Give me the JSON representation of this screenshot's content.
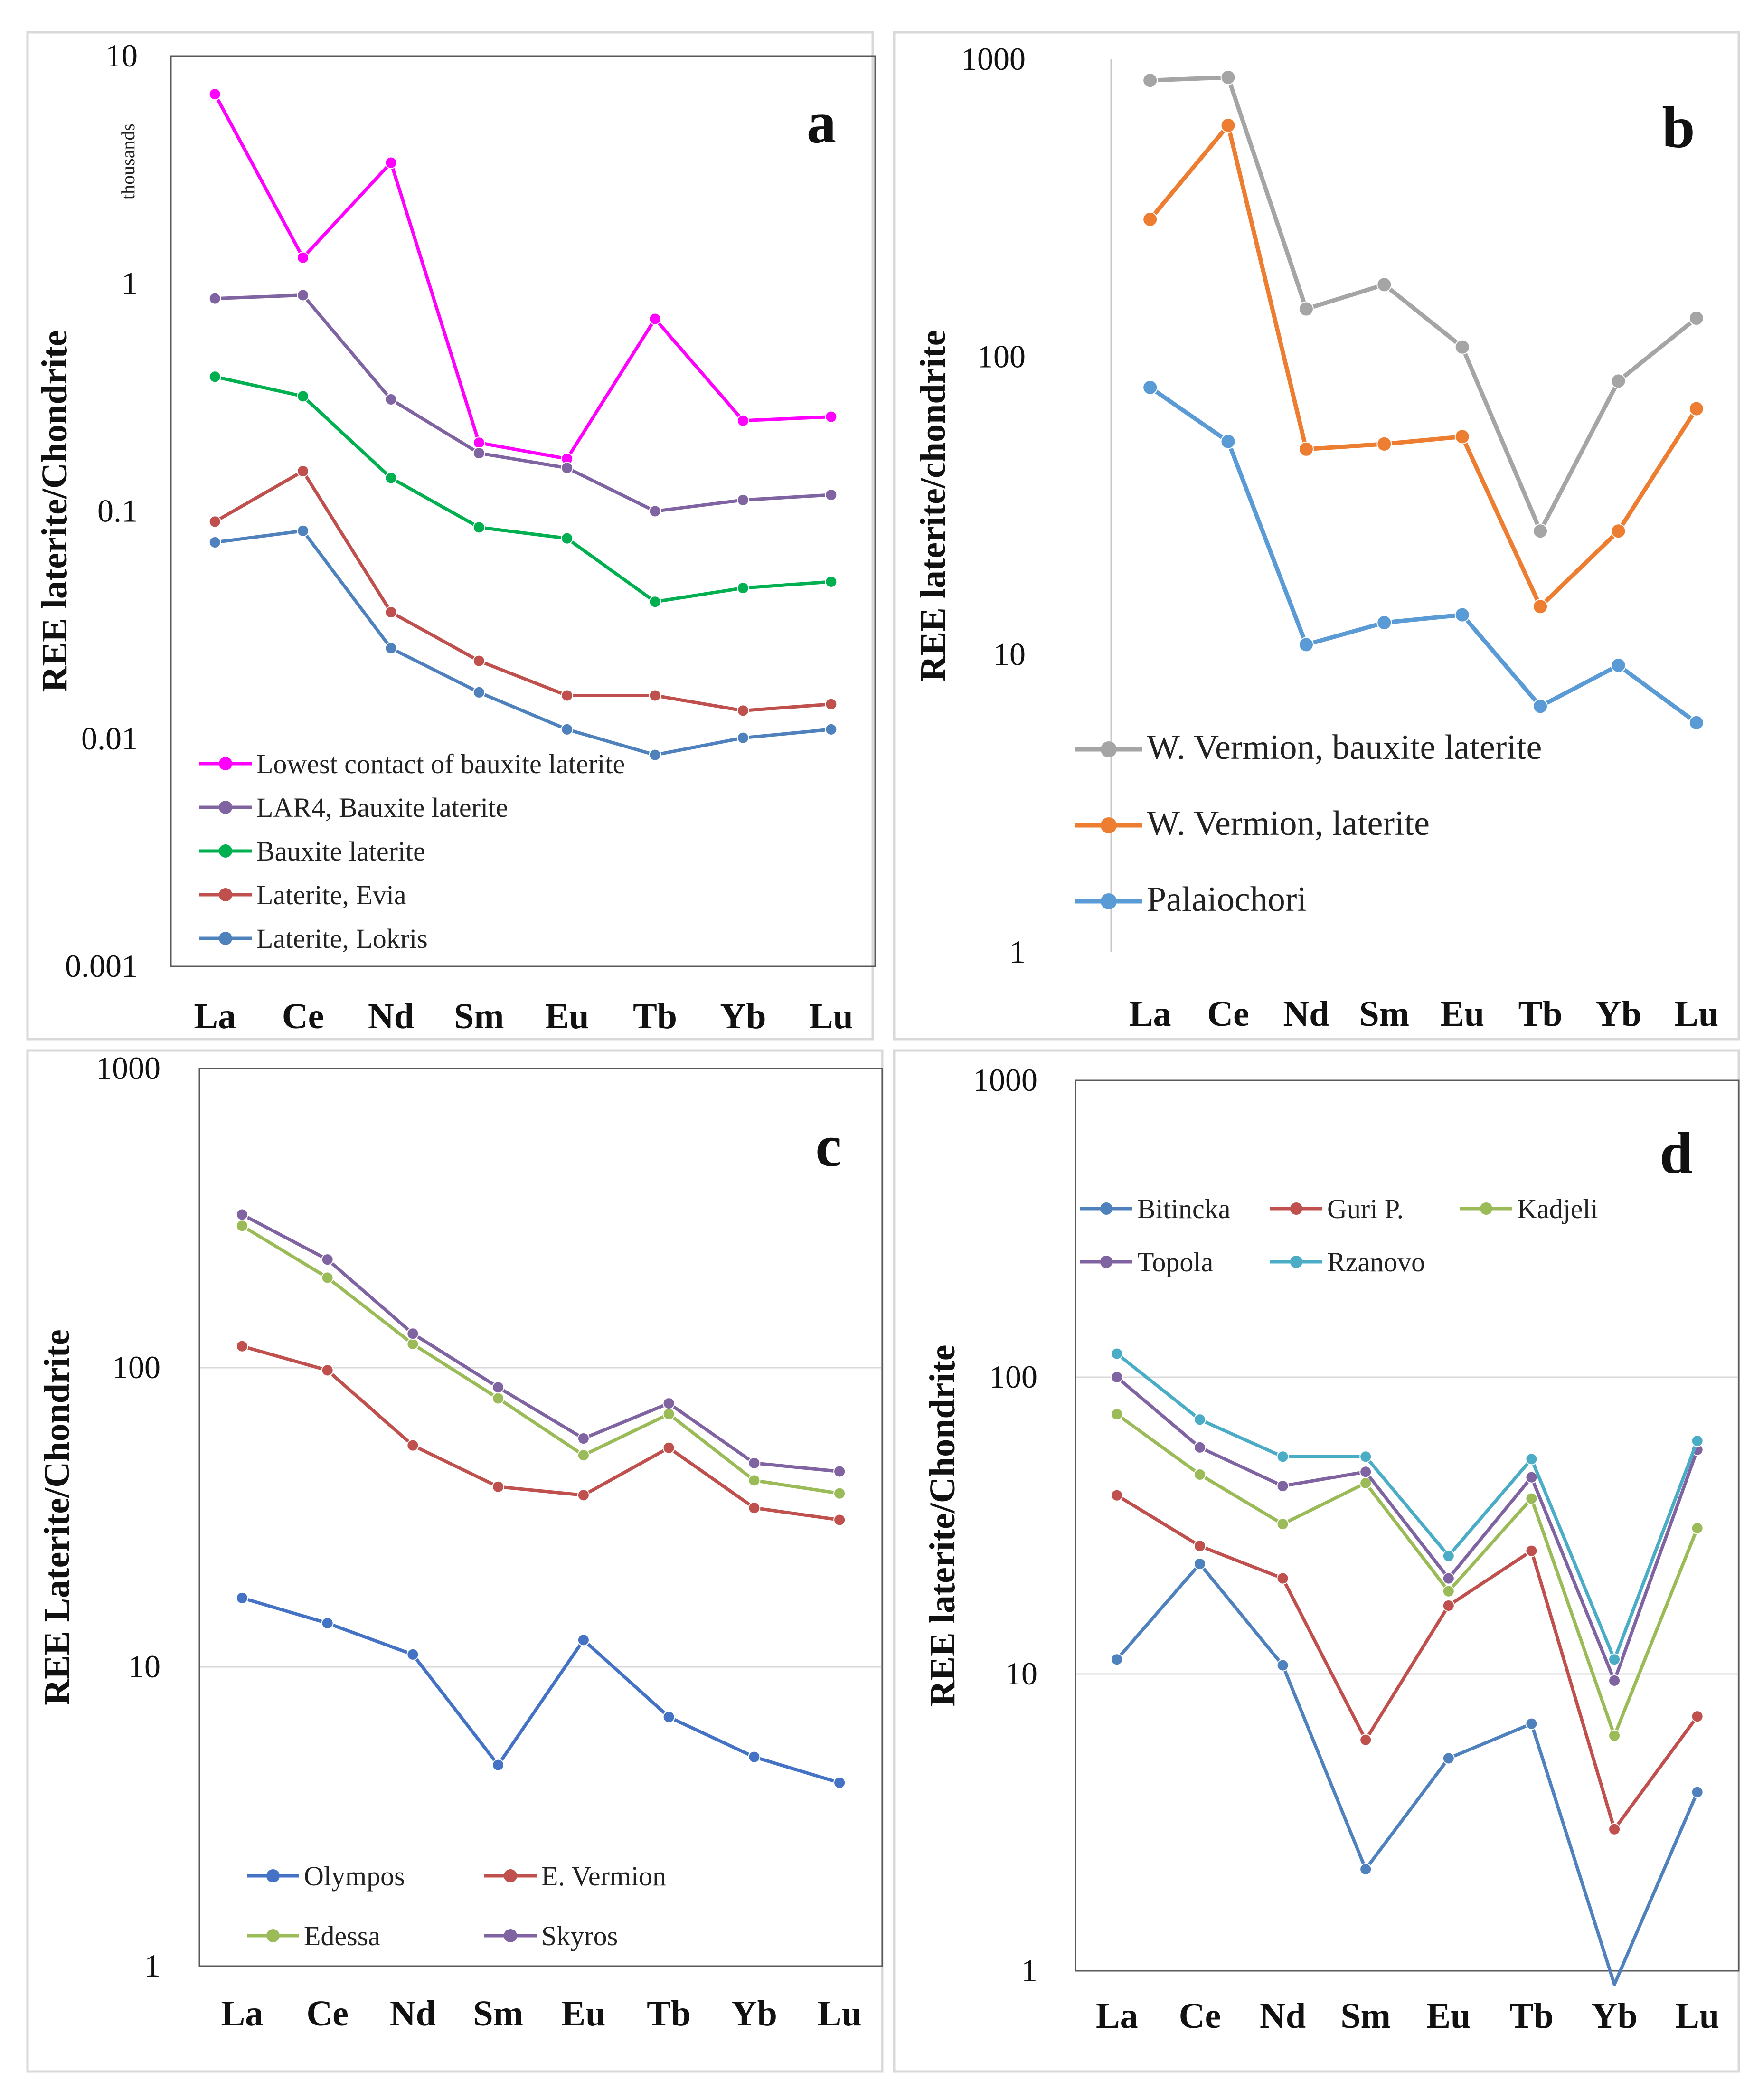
{
  "figure": {
    "panels": [
      {
        "id": "a",
        "letter": "a",
        "axis_unit_label": "thousands"
      },
      {
        "id": "b",
        "letter": "b"
      },
      {
        "id": "c",
        "letter": "c"
      },
      {
        "id": "d",
        "letter": "d"
      }
    ]
  },
  "chart_data": [
    {
      "panel": "a",
      "type": "line",
      "yscale": "log",
      "ylabel": "REE laterite/Chondrite",
      "ylim": [
        0.001,
        10
      ],
      "ytick_labels": [
        "10",
        "1",
        "0.1",
        "0.01",
        "0.001"
      ],
      "ytick_values": [
        10,
        1,
        0.1,
        0.01,
        0.001
      ],
      "categories": [
        "La",
        "Ce",
        "Nd",
        "Sm",
        "Eu",
        "Tb",
        "Yb",
        "Lu"
      ],
      "grid": false,
      "legend_position": "bottom-left",
      "series": [
        {
          "name": "Lowest contact of bauxite laterite",
          "color": "#ff00ff",
          "values": [
            6.8,
            1.3,
            3.4,
            0.2,
            0.17,
            0.7,
            0.25,
            0.26
          ]
        },
        {
          "name": "LAR4, Bauxite laterite",
          "color": "#8064a2",
          "values": [
            0.86,
            0.89,
            0.31,
            0.18,
            0.155,
            0.1,
            0.112,
            0.118
          ]
        },
        {
          "name": "Bauxite laterite",
          "color": "#00b050",
          "values": [
            0.39,
            0.32,
            0.14,
            0.085,
            0.076,
            0.04,
            0.046,
            0.049
          ]
        },
        {
          "name": "Laterite, Evia",
          "color": "#c0504d",
          "values": [
            0.09,
            0.15,
            0.036,
            0.022,
            0.0155,
            0.0155,
            0.0133,
            0.0142
          ]
        },
        {
          "name": "Laterite, Lokris",
          "color": "#4f81bd",
          "values": [
            0.073,
            0.082,
            0.025,
            0.016,
            0.011,
            0.0085,
            0.0101,
            0.011
          ]
        }
      ]
    },
    {
      "panel": "b",
      "type": "line",
      "yscale": "log",
      "ylabel": "REE laterite/chondrite",
      "ylim": [
        1,
        1000
      ],
      "ytick_labels": [
        "1000",
        "100",
        "10",
        "1"
      ],
      "ytick_values": [
        1000,
        100,
        10,
        1
      ],
      "categories": [
        "La",
        "Ce",
        "Nd",
        "Sm",
        "Eu",
        "Tb",
        "Yb",
        "Lu"
      ],
      "grid": false,
      "legend_position": "bottom-left",
      "series": [
        {
          "name": "W. Vermion, bauxite laterite",
          "color": "#a5a5a5",
          "values": [
            850,
            870,
            145,
            175,
            108,
            26,
            83,
            135
          ]
        },
        {
          "name": "W. Vermion, laterite",
          "color": "#ed7d31",
          "values": [
            290,
            600,
            49,
            51,
            54,
            14.5,
            26,
            67
          ]
        },
        {
          "name": "Palaiochori",
          "color": "#5b9bd5",
          "values": [
            79,
            52,
            10.8,
            12.8,
            13.6,
            6.7,
            9.2,
            5.9
          ]
        }
      ]
    },
    {
      "panel": "c",
      "type": "line",
      "yscale": "log",
      "ylabel": "REE Laterite/Chondrite",
      "ylim": [
        1,
        1000
      ],
      "ytick_labels": [
        "1000",
        "100",
        "10",
        "1"
      ],
      "ytick_values": [
        1000,
        100,
        10,
        1
      ],
      "categories": [
        "La",
        "Ce",
        "Nd",
        "Sm",
        "Eu",
        "Tb",
        "Yb",
        "Lu"
      ],
      "grid": true,
      "legend_position": "bottom",
      "series": [
        {
          "name": "Olympos",
          "color": "#4472c4",
          "values": [
            17,
            14,
            11,
            4.7,
            12.3,
            6.8,
            5,
            4.1
          ]
        },
        {
          "name": "E. Vermion",
          "color": "#c0504d",
          "values": [
            118,
            98,
            55,
            40,
            37.5,
            54,
            34,
            31
          ]
        },
        {
          "name": "Edessa",
          "color": "#9bbb59",
          "values": [
            298,
            200,
            120,
            79,
            51,
            70,
            42,
            38
          ]
        },
        {
          "name": "Skyros",
          "color": "#8064a2",
          "values": [
            325,
            230,
            130,
            86,
            58,
            76,
            48,
            45
          ]
        }
      ]
    },
    {
      "panel": "d",
      "type": "line",
      "yscale": "log",
      "ylabel": "REE laterite/Chondrite",
      "ylim": [
        1,
        1000
      ],
      "ytick_labels": [
        "1000",
        "100",
        "10",
        "1"
      ],
      "ytick_values": [
        1000,
        100,
        10,
        1
      ],
      "categories": [
        "La",
        "Ce",
        "Nd",
        "Sm",
        "Eu",
        "Tb",
        "Yb",
        "Lu"
      ],
      "grid": true,
      "legend_position": "top-left",
      "series": [
        {
          "name": "Bitincka",
          "color": "#4f81bd",
          "values": [
            11.2,
            23.5,
            10.7,
            2.2,
            5.2,
            6.8,
            0.9,
            4.0
          ]
        },
        {
          "name": "Guri P.",
          "color": "#c0504d",
          "values": [
            40,
            27,
            21,
            6,
            17,
            26,
            3,
            7.2
          ]
        },
        {
          "name": "Kadjeli",
          "color": "#9bbb59",
          "values": [
            75,
            47,
            32,
            44,
            19,
            39,
            6.2,
            31
          ]
        },
        {
          "name": "Topola",
          "color": "#8064a2",
          "values": [
            100,
            58,
            43,
            48,
            21,
            46,
            9.5,
            57
          ]
        },
        {
          "name": "Rzanovo",
          "color": "#4bacc6",
          "values": [
            120,
            72,
            54,
            54,
            25,
            53,
            11.2,
            61
          ]
        }
      ]
    }
  ]
}
